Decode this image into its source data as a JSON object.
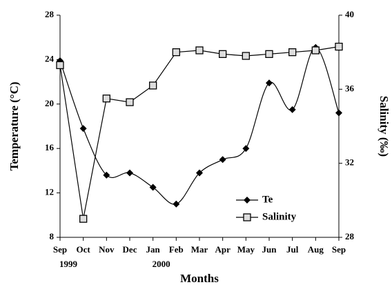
{
  "chart_data": {
    "type": "line",
    "categories": [
      "Sep",
      "Oct",
      "Nov",
      "Dec",
      "Jan",
      "Feb",
      "Mar",
      "Apr",
      "May",
      "Jun",
      "Jul",
      "Aug",
      "Sep"
    ],
    "year_labels": [
      "1999",
      null,
      null,
      null,
      "2000",
      null,
      null,
      null,
      null,
      null,
      null,
      null,
      null
    ],
    "xlabel": "Months",
    "ylabel": "Temperature (°C)",
    "y2label": "Salinity (‰)",
    "ylim": [
      8,
      28
    ],
    "yticks": [
      8,
      12,
      16,
      20,
      24,
      28
    ],
    "y2lim": [
      28,
      40
    ],
    "y2ticks": [
      28,
      32,
      36,
      40
    ],
    "legend": "lower right",
    "series": [
      {
        "name": "Te",
        "color": "#000000",
        "marker": "diamond",
        "smooth": true,
        "values": [
          23.9,
          17.8,
          13.6,
          13.8,
          12.5,
          11.0,
          13.8,
          15.0,
          16.0,
          21.9,
          19.5,
          25.1,
          19.2
        ]
      },
      {
        "name": "Salinity",
        "color": "#000000",
        "marker": "square",
        "axis": "y2",
        "smooth": false,
        "values": [
          37.3,
          29.0,
          35.5,
          35.3,
          36.2,
          38.0,
          38.1,
          37.9,
          37.8,
          37.9,
          38.0,
          38.1,
          38.3
        ]
      }
    ]
  }
}
